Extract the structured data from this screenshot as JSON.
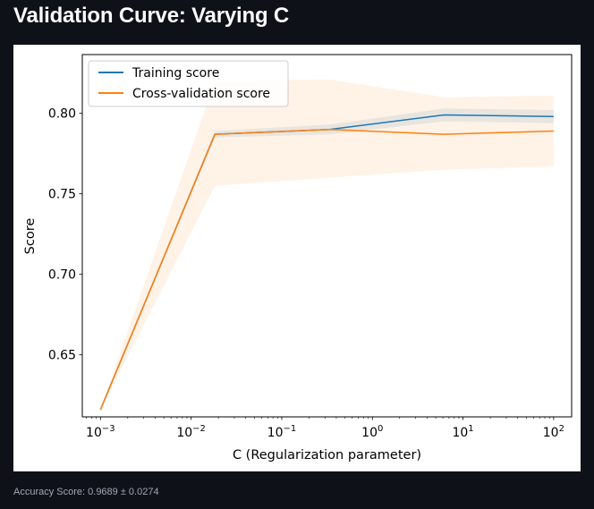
{
  "page": {
    "title": "Validation Curve: Varying C",
    "footer": "Accuracy Score: 0.9689 ± 0.0274"
  },
  "chart_data": {
    "type": "line",
    "title": "",
    "xlabel": "C (Regularization parameter)",
    "ylabel": "Score",
    "xscale": "log",
    "xlim": [
      0.00063,
      158
    ],
    "ylim": [
      0.6115,
      0.8365
    ],
    "x_ticks": [
      0.001,
      0.01,
      0.1,
      1,
      10,
      100
    ],
    "x_tick_labels": [
      {
        "base": "10",
        "exp": "−3"
      },
      {
        "base": "10",
        "exp": "−2"
      },
      {
        "base": "10",
        "exp": "−1"
      },
      {
        "base": "10",
        "exp": "0"
      },
      {
        "base": "10",
        "exp": "1"
      },
      {
        "base": "10",
        "exp": "2"
      }
    ],
    "y_ticks": [
      0.65,
      0.7,
      0.75,
      0.8
    ],
    "y_tick_labels": [
      "0.65",
      "0.70",
      "0.75",
      "0.80"
    ],
    "x": [
      0.001,
      0.0183,
      0.336,
      6.16,
      100
    ],
    "series": [
      {
        "name": "Training score",
        "color": "#1f77b4",
        "values": [
          0.616,
          0.787,
          0.79,
          0.799,
          0.798
        ],
        "band_lower": [
          0.616,
          0.785,
          0.787,
          0.795,
          0.794
        ],
        "band_upper": [
          0.616,
          0.789,
          0.793,
          0.803,
          0.802
        ]
      },
      {
        "name": "Cross-validation score",
        "color": "#ff7f0e",
        "values": [
          0.616,
          0.787,
          0.79,
          0.787,
          0.789
        ],
        "band_lower": [
          0.616,
          0.755,
          0.76,
          0.765,
          0.767
        ],
        "band_upper": [
          0.616,
          0.82,
          0.821,
          0.81,
          0.811
        ]
      }
    ],
    "legend_position": "upper-left",
    "grid": false
  }
}
